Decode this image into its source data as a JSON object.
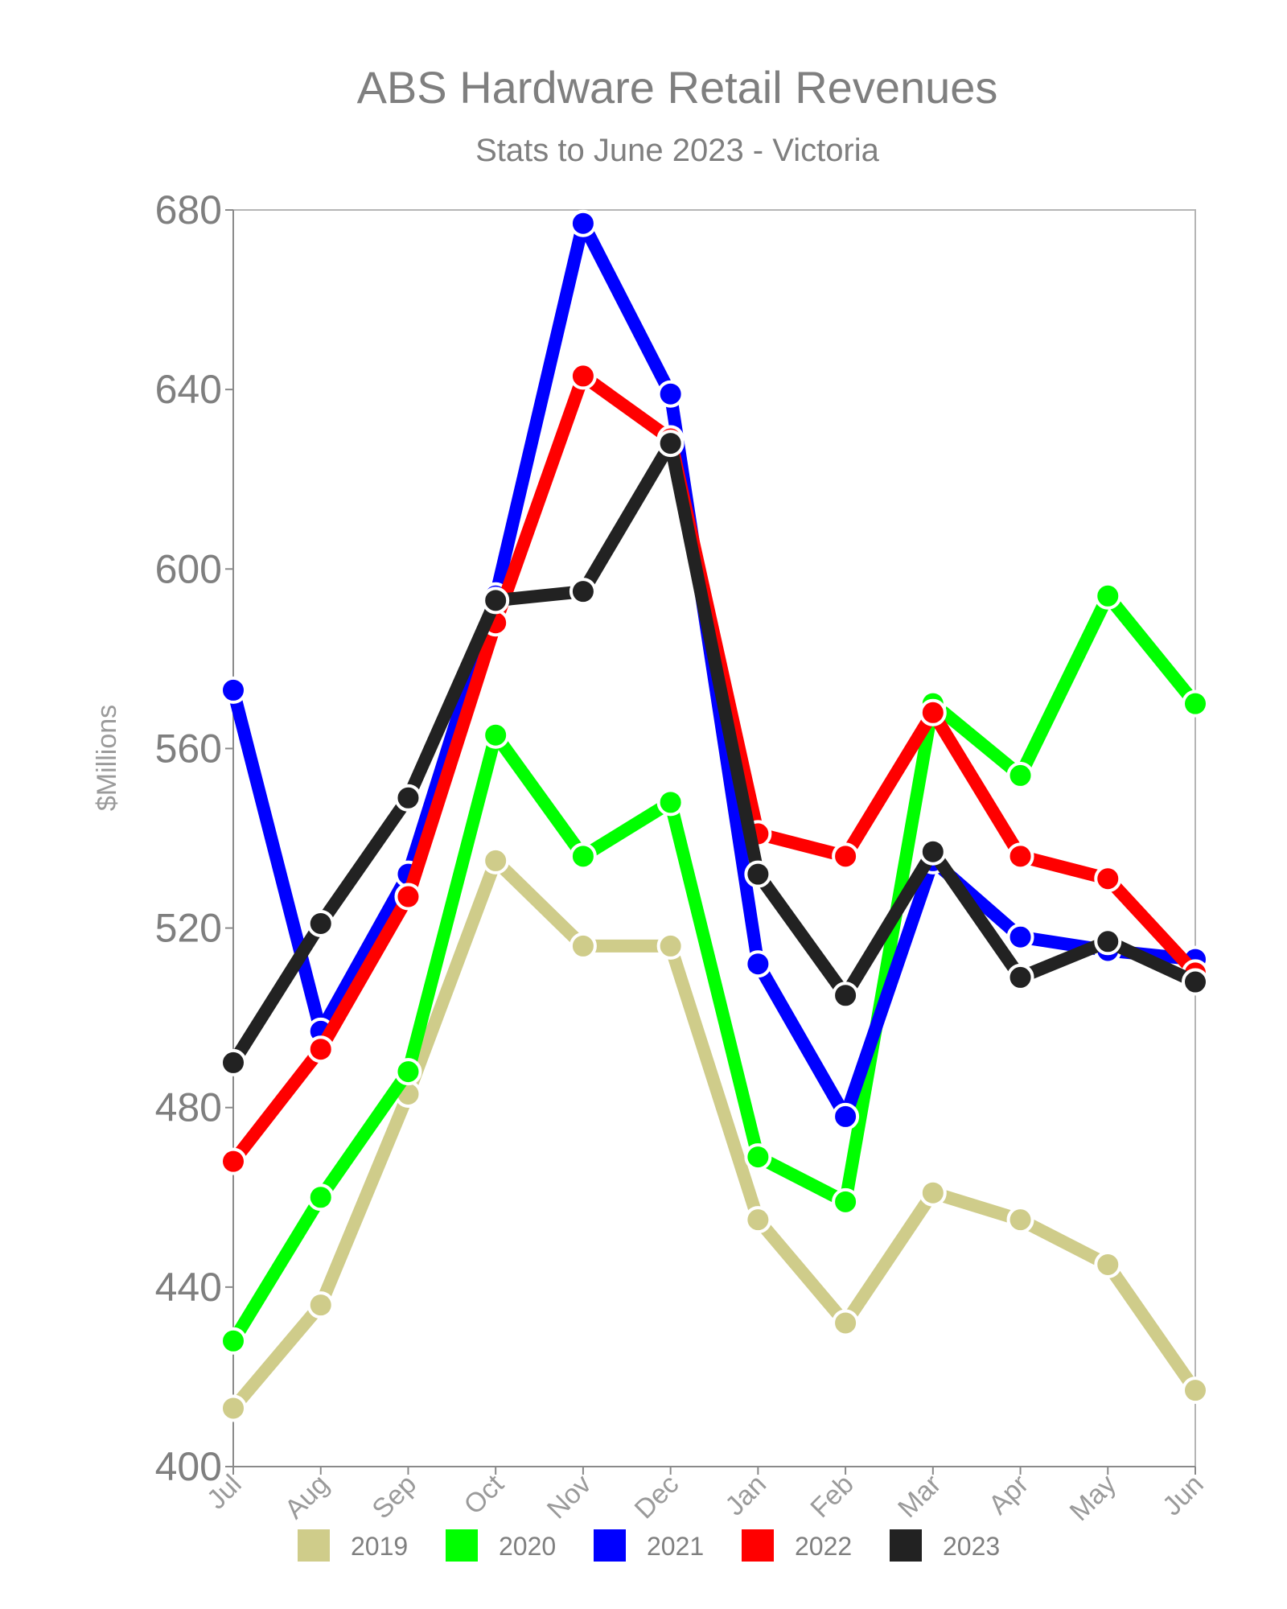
{
  "chart_data": {
    "type": "line",
    "title": "ABS Hardware Retail Revenues",
    "subtitle": "Stats to June 2023 - Victoria",
    "ylabel": "$Millions",
    "xlabel": "",
    "categories": [
      "Jul",
      "Aug",
      "Sep",
      "Oct",
      "Nov",
      "Dec",
      "Jan",
      "Feb",
      "Mar",
      "Apr",
      "May",
      "Jun"
    ],
    "ylim": [
      400,
      680
    ],
    "yticks": [
      400,
      440,
      480,
      520,
      560,
      600,
      640,
      680
    ],
    "grid": false,
    "legend_position": "bottom",
    "series": [
      {
        "name": "2019",
        "color": "#cfcc8a",
        "values": [
          413,
          436,
          483,
          535,
          516,
          516,
          455,
          432,
          461,
          455,
          445,
          417
        ]
      },
      {
        "name": "2020",
        "color": "#00ff00",
        "values": [
          428,
          460,
          488,
          563,
          536,
          548,
          469,
          459,
          570,
          554,
          594,
          570
        ]
      },
      {
        "name": "2021",
        "color": "#0000ff",
        "values": [
          573,
          497,
          532,
          594,
          677,
          639,
          512,
          478,
          535,
          518,
          515,
          513
        ]
      },
      {
        "name": "2022",
        "color": "#ff0000",
        "values": [
          468,
          493,
          527,
          588,
          643,
          629,
          541,
          536,
          568,
          536,
          531,
          510
        ]
      },
      {
        "name": "2023",
        "color": "#222222",
        "values": [
          490,
          521,
          549,
          593,
          595,
          628,
          532,
          505,
          537,
          509,
          517,
          508
        ]
      }
    ]
  }
}
